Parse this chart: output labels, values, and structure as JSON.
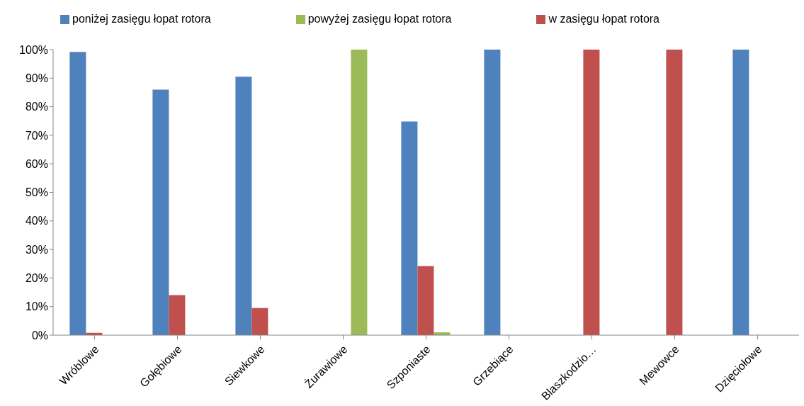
{
  "chart_data": {
    "type": "bar",
    "categories": [
      "Wróblowe",
      "Gołębiowe",
      "Siewkowe",
      "Żurawiowe",
      "Szponiaste",
      "Grzebiące",
      "Blaszkodzio…",
      "Mewowce",
      "Dzięciołowe"
    ],
    "series": [
      {
        "name": "poniżej zasięgu łopat rotora",
        "color": "#4f81bd",
        "values": [
          99.2,
          86,
          90.5,
          null,
          74.8,
          100,
          null,
          null,
          100
        ]
      },
      {
        "name": "w zasięgu łopat rotora",
        "color": "#c0504d",
        "values": [
          0.8,
          14,
          9.5,
          null,
          24.2,
          null,
          100,
          100,
          null
        ]
      },
      {
        "name": "powyżej zasięgu łopat rotora",
        "color": "#9bbb59",
        "values": [
          null,
          null,
          null,
          100,
          1,
          null,
          null,
          null,
          null
        ]
      }
    ],
    "ylim": [
      0,
      100
    ],
    "yticks": [
      {
        "value": 0,
        "label": "0%"
      },
      {
        "value": 10,
        "label": "10%"
      },
      {
        "value": 20,
        "label": "20%"
      },
      {
        "value": 30,
        "label": "30%"
      },
      {
        "value": 40,
        "label": "40%"
      },
      {
        "value": 50,
        "label": "50%"
      },
      {
        "value": 60,
        "label": "60%"
      },
      {
        "value": 70,
        "label": "70%"
      },
      {
        "value": 80,
        "label": "80%"
      },
      {
        "value": 90,
        "label": "90%"
      },
      {
        "value": 100,
        "label": "100%"
      }
    ],
    "grid": false,
    "legend": "top"
  }
}
